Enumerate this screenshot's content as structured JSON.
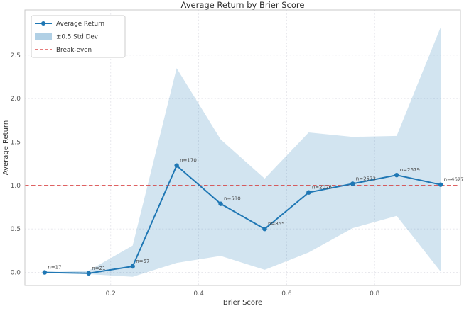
{
  "figure_title": "Average Return by Brier Score",
  "chart_data": {
    "type": "line",
    "title": "Average Return by Brier Score",
    "xlabel": "Brier Score",
    "ylabel": "Average Return",
    "x": [
      0.05,
      0.15,
      0.25,
      0.35,
      0.45,
      0.55,
      0.65,
      0.75,
      0.85,
      0.95
    ],
    "series": [
      {
        "name": "Average Return",
        "values": [
          0.0,
          -0.01,
          0.07,
          1.23,
          0.79,
          0.5,
          0.92,
          1.02,
          1.12,
          1.01
        ]
      }
    ],
    "band": {
      "name": "±0.5 Std Dev",
      "upper": [
        0.0,
        0.02,
        0.31,
        2.35,
        1.53,
        1.08,
        1.61,
        1.56,
        1.57,
        2.82
      ],
      "lower": [
        0.0,
        -0.02,
        -0.05,
        0.11,
        0.19,
        0.03,
        0.23,
        0.51,
        0.65,
        0.01
      ]
    },
    "breakeven": {
      "name": "Break-even",
      "y": 1.0
    },
    "point_labels": [
      "n=17",
      "n=21",
      "n=57",
      "n=170",
      "n=530",
      "n=855",
      "n=2026",
      "n=2573",
      "n=2679",
      "n=4627"
    ],
    "xticks": [
      0.2,
      0.4,
      0.6,
      0.8
    ],
    "xtick_labels": [
      "0.2",
      "0.4",
      "0.6",
      "0.8"
    ],
    "yticks": [
      0.0,
      0.5,
      1.0,
      1.5,
      2.0,
      2.5
    ],
    "ytick_labels": [
      "0.0",
      "0.5",
      "1.0",
      "1.5",
      "2.0",
      "2.5"
    ],
    "xlim": [
      0.005,
      0.995
    ],
    "ylim": [
      -0.15,
      3.02
    ],
    "grid": true,
    "legend_position": "upper-left",
    "legend": {
      "items": [
        {
          "label": "Average Return",
          "type": "line-marker"
        },
        {
          "label": "±0.5 Std Dev",
          "type": "patch"
        },
        {
          "label": "Break-even",
          "type": "dashed"
        }
      ]
    },
    "colors": {
      "line": "#1f77b4",
      "band_fill": "#1f77b4",
      "band_opacity": 0.2,
      "breakeven": "#d62f2f",
      "grid": "#e4e4ea",
      "spine": "#c9c9c9",
      "text": "#333333",
      "tick_text": "#555555",
      "annotation_text": "#454545"
    }
  }
}
